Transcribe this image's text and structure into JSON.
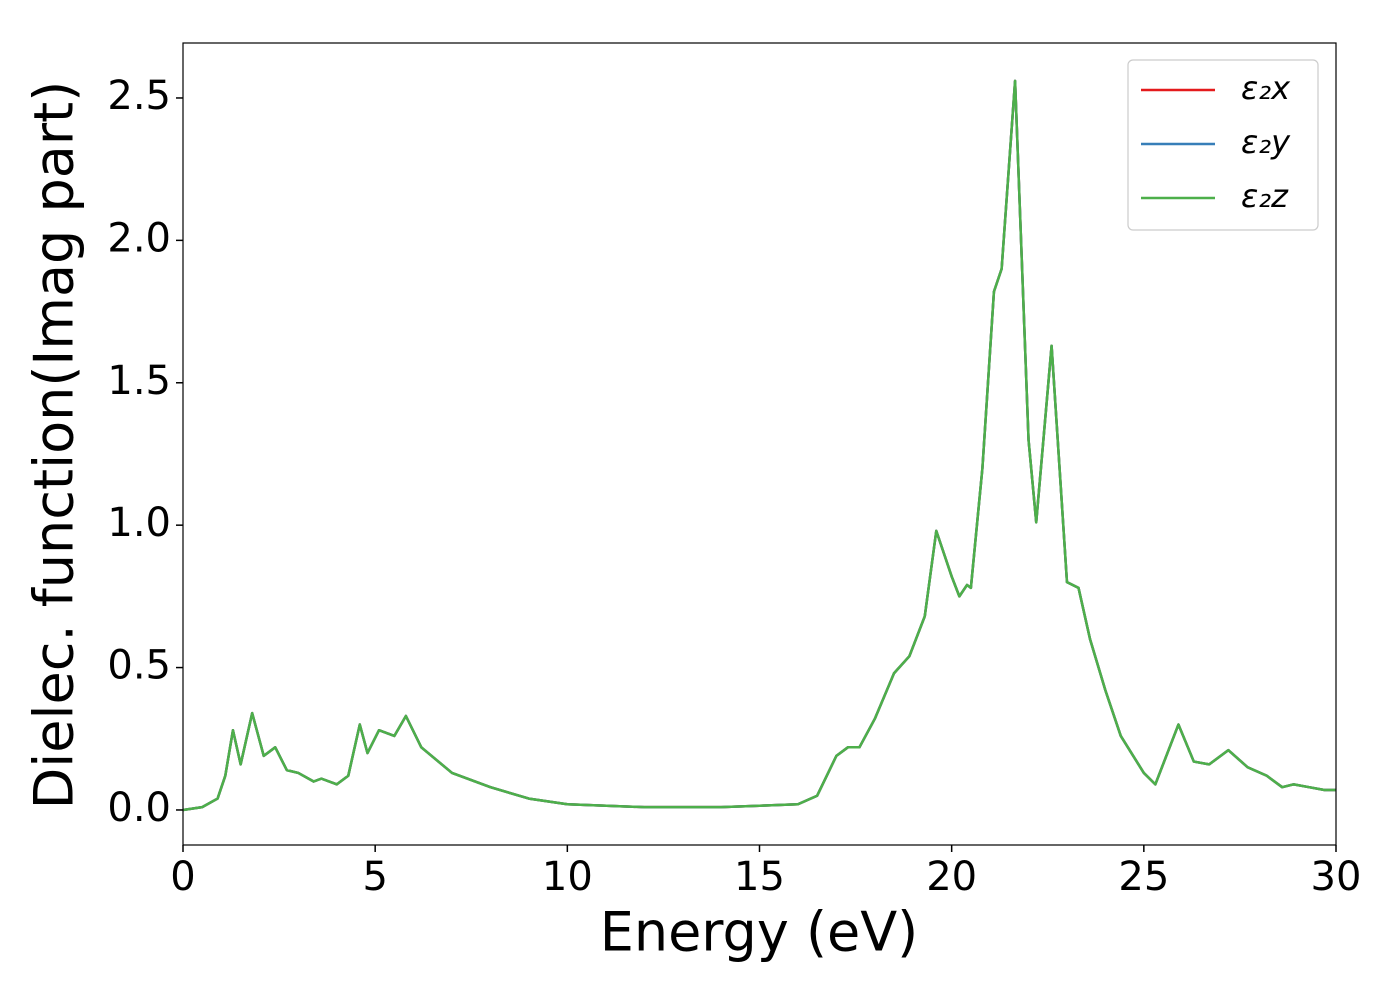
{
  "chart_data": {
    "type": "line",
    "xlabel": "Energy (eV)",
    "ylabel": "Dielec. function(Imag part)",
    "x": [
      0,
      0.5,
      0.9,
      1.1,
      1.3,
      1.5,
      1.8,
      2.1,
      2.4,
      2.7,
      3.0,
      3.4,
      3.6,
      4.0,
      4.3,
      4.6,
      4.8,
      5.1,
      5.5,
      5.8,
      6.2,
      7,
      8,
      9,
      10,
      12,
      14,
      16,
      16.5,
      17,
      17.3,
      17.6,
      18,
      18.5,
      18.9,
      19.3,
      19.6,
      20,
      20.2,
      20.4,
      20.5,
      20.8,
      21.1,
      21.3,
      21.65,
      22,
      22.2,
      22.6,
      23,
      23.3,
      23.6,
      24,
      24.4,
      25,
      25.3,
      25.9,
      26.3,
      26.7,
      27.2,
      27.7,
      28.2,
      28.6,
      28.9,
      29.3,
      29.7,
      30
    ],
    "series": [
      {
        "name": "ε₂x",
        "color": "#e41a1c",
        "values": [
          0,
          0.01,
          0.04,
          0.12,
          0.28,
          0.16,
          0.34,
          0.19,
          0.22,
          0.14,
          0.13,
          0.1,
          0.11,
          0.09,
          0.12,
          0.3,
          0.2,
          0.28,
          0.26,
          0.33,
          0.22,
          0.13,
          0.08,
          0.04,
          0.02,
          0.01,
          0.01,
          0.02,
          0.05,
          0.19,
          0.22,
          0.22,
          0.32,
          0.48,
          0.54,
          0.68,
          0.98,
          0.82,
          0.75,
          0.79,
          0.78,
          1.2,
          1.82,
          1.9,
          2.56,
          1.3,
          1.01,
          1.63,
          0.8,
          0.78,
          0.6,
          0.42,
          0.26,
          0.13,
          0.09,
          0.3,
          0.17,
          0.16,
          0.21,
          0.15,
          0.12,
          0.08,
          0.09,
          0.08,
          0.07,
          0.07
        ]
      },
      {
        "name": "ε₂y",
        "color": "#377eb8",
        "values": [
          0,
          0.01,
          0.04,
          0.12,
          0.28,
          0.16,
          0.34,
          0.19,
          0.22,
          0.14,
          0.13,
          0.1,
          0.11,
          0.09,
          0.12,
          0.3,
          0.2,
          0.28,
          0.26,
          0.33,
          0.22,
          0.13,
          0.08,
          0.04,
          0.02,
          0.01,
          0.01,
          0.02,
          0.05,
          0.19,
          0.22,
          0.22,
          0.32,
          0.48,
          0.54,
          0.68,
          0.98,
          0.82,
          0.75,
          0.79,
          0.78,
          1.2,
          1.82,
          1.9,
          2.56,
          1.3,
          1.01,
          1.63,
          0.8,
          0.78,
          0.6,
          0.42,
          0.26,
          0.13,
          0.09,
          0.3,
          0.17,
          0.16,
          0.21,
          0.15,
          0.12,
          0.08,
          0.09,
          0.08,
          0.07,
          0.07
        ]
      },
      {
        "name": "ε₂z",
        "color": "#4daf4a",
        "values": [
          0,
          0.01,
          0.04,
          0.12,
          0.28,
          0.16,
          0.34,
          0.19,
          0.22,
          0.14,
          0.13,
          0.1,
          0.11,
          0.09,
          0.12,
          0.3,
          0.2,
          0.28,
          0.26,
          0.33,
          0.22,
          0.13,
          0.08,
          0.04,
          0.02,
          0.01,
          0.01,
          0.02,
          0.05,
          0.19,
          0.22,
          0.22,
          0.32,
          0.48,
          0.54,
          0.68,
          0.98,
          0.82,
          0.75,
          0.79,
          0.78,
          1.2,
          1.82,
          1.9,
          2.56,
          1.3,
          1.01,
          1.63,
          0.8,
          0.78,
          0.6,
          0.42,
          0.26,
          0.13,
          0.09,
          0.3,
          0.17,
          0.16,
          0.21,
          0.15,
          0.12,
          0.08,
          0.09,
          0.08,
          0.07,
          0.07
        ]
      }
    ],
    "xlim": [
      0,
      30
    ],
    "xticks": [
      0,
      5,
      10,
      15,
      20,
      25,
      30
    ],
    "ylim": [
      -0.123,
      2.693
    ],
    "yticks": [
      {
        "value": 0,
        "label": "0.0"
      },
      0.5,
      {
        "value": 1,
        "label": "1.0"
      },
      1.5,
      {
        "value": 2,
        "label": "2.0"
      },
      2.5
    ],
    "legend": "upper right",
    "grid": false
  }
}
